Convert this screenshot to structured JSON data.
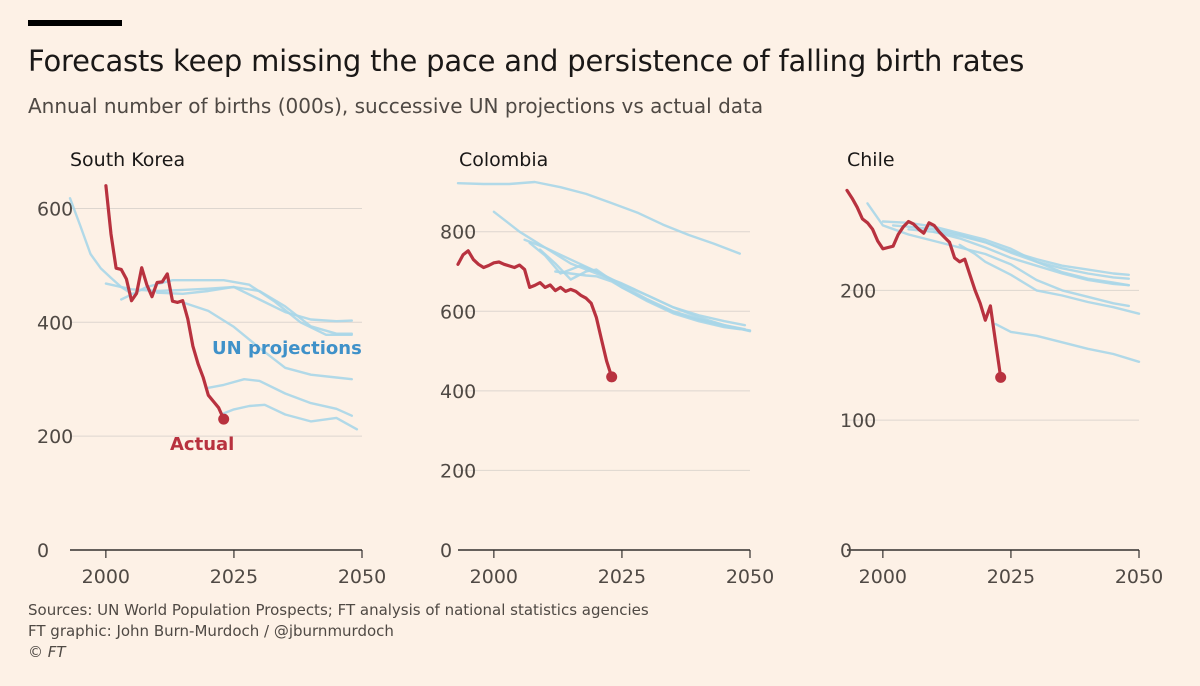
{
  "title": "Forecasts keep missing the pace and persistence of falling birth rates",
  "subtitle": "Annual number of births (000s), successive UN projections vs actual data",
  "footer": {
    "sources": "Sources: UN World Population Prospects; FT analysis of national statistics agencies",
    "credit": "FT graphic: John Burn-Murdoch / @jburnmurdoch",
    "copyright": "© FT"
  },
  "colors": {
    "background": "#fdf1e6",
    "actual": "#b8323f",
    "projection": "#a9d6e8",
    "projection_label": "#3f91c9",
    "grid": "#ddd6cf",
    "axis": "#33302e"
  },
  "chart_data": [
    {
      "type": "line",
      "title": "South Korea",
      "xlim": [
        1993,
        2050
      ],
      "ylim": [
        0,
        650
      ],
      "xticks": [
        2000,
        2025,
        2050
      ],
      "yticks": [
        0,
        200,
        400,
        600
      ],
      "annotations": {
        "projections": "UN projections",
        "actual": "Actual"
      },
      "series": [
        {
          "name": "Actual",
          "x": [
            2000,
            2001,
            2002,
            2003,
            2004,
            2005,
            2006,
            2007,
            2008,
            2009,
            2010,
            2011,
            2012,
            2013,
            2014,
            2015,
            2016,
            2017,
            2018,
            2019,
            2020,
            2021,
            2022,
            2023
          ],
          "y": [
            640,
            555,
            495,
            493,
            476,
            438,
            451,
            496,
            466,
            445,
            470,
            471,
            485,
            437,
            435,
            438,
            406,
            358,
            327,
            303,
            272,
            261,
            250,
            230
          ]
        },
        {
          "x": [
            1993,
            1995,
            1997,
            1999,
            2001,
            2003,
            2005
          ],
          "y": [
            618,
            570,
            520,
            495,
            478,
            462,
            450
          ]
        },
        {
          "x": [
            2000,
            2005,
            2010,
            2015,
            2020,
            2025,
            2030,
            2035,
            2040,
            2045,
            2048
          ],
          "y": [
            468,
            458,
            455,
            457,
            459,
            462,
            440,
            418,
            405,
            402,
            403
          ]
        },
        {
          "x": [
            2003,
            2008,
            2013,
            2018,
            2023,
            2028,
            2033,
            2038,
            2043,
            2048
          ],
          "y": [
            440,
            462,
            474,
            474,
            474,
            466,
            436,
            400,
            378,
            378
          ]
        },
        {
          "x": [
            2010,
            2015,
            2020,
            2025,
            2030,
            2035,
            2040,
            2045,
            2048
          ],
          "y": [
            452,
            450,
            455,
            462,
            455,
            428,
            393,
            380,
            380
          ]
        },
        {
          "x": [
            2015,
            2020,
            2025,
            2030,
            2035,
            2040,
            2045,
            2048
          ],
          "y": [
            435,
            420,
            392,
            355,
            320,
            308,
            303,
            300
          ]
        },
        {
          "x": [
            2020,
            2023,
            2027,
            2030,
            2035,
            2040,
            2045,
            2048
          ],
          "y": [
            285,
            290,
            300,
            297,
            275,
            258,
            248,
            236
          ]
        },
        {
          "x": [
            2023,
            2025,
            2028,
            2031,
            2035,
            2040,
            2045,
            2049
          ],
          "y": [
            240,
            247,
            253,
            255,
            238,
            226,
            232,
            212
          ]
        }
      ]
    },
    {
      "type": "line",
      "title": "Colombia",
      "xlim": [
        1993,
        2050
      ],
      "ylim": [
        0,
        930
      ],
      "xticks": [
        2000,
        2025,
        2050
      ],
      "yticks": [
        0,
        200,
        400,
        600,
        800
      ],
      "series": [
        {
          "name": "Actual",
          "x": [
            1993,
            1994,
            1995,
            1996,
            1997,
            1998,
            1999,
            2000,
            2001,
            2002,
            2003,
            2004,
            2005,
            2006,
            2007,
            2008,
            2009,
            2010,
            2011,
            2012,
            2013,
            2014,
            2015,
            2016,
            2017,
            2018,
            2019,
            2020,
            2021,
            2022,
            2023
          ],
          "y": [
            718,
            742,
            752,
            730,
            718,
            710,
            715,
            722,
            724,
            718,
            714,
            710,
            716,
            705,
            660,
            665,
            672,
            660,
            666,
            652,
            660,
            650,
            655,
            650,
            640,
            633,
            620,
            585,
            530,
            475,
            435
          ]
        },
        {
          "x": [
            1993,
            1998,
            2003,
            2008,
            2013,
            2018,
            2023,
            2028,
            2033,
            2038,
            2043,
            2048
          ],
          "y": [
            922,
            920,
            920,
            925,
            912,
            895,
            872,
            848,
            818,
            792,
            770,
            745
          ]
        },
        {
          "x": [
            2000,
            2005,
            2010,
            2015,
            2020,
            2025,
            2030,
            2035,
            2040,
            2045,
            2049
          ],
          "y": [
            850,
            800,
            760,
            730,
            700,
            668,
            640,
            610,
            590,
            575,
            565
          ]
        },
        {
          "x": [
            2006,
            2010,
            2015,
            2020,
            2025,
            2030,
            2035,
            2040,
            2045,
            2050
          ],
          "y": [
            780,
            760,
            720,
            695,
            670,
            640,
            610,
            585,
            565,
            550
          ]
        },
        {
          "x": [
            2007,
            2010,
            2013,
            2017,
            2020,
            2025,
            2030,
            2035,
            2040,
            2045,
            2049
          ],
          "y": [
            772,
            740,
            695,
            715,
            700,
            665,
            630,
            600,
            580,
            565,
            555
          ]
        },
        {
          "x": [
            2009,
            2012,
            2015,
            2018,
            2020,
            2025,
            2030,
            2035,
            2040,
            2045,
            2048
          ],
          "y": [
            755,
            720,
            680,
            700,
            705,
            660,
            625,
            595,
            575,
            560,
            555
          ]
        },
        {
          "x": [
            2012,
            2015,
            2018,
            2020,
            2023,
            2025,
            2030,
            2035,
            2040,
            2045,
            2050
          ],
          "y": [
            700,
            695,
            690,
            688,
            675,
            660,
            628,
            598,
            578,
            562,
            552
          ]
        }
      ]
    },
    {
      "type": "line",
      "title": "Chile",
      "xlim": [
        1993,
        2050
      ],
      "ylim": [
        0,
        285
      ],
      "xticks": [
        2000,
        2025,
        2050
      ],
      "yticks": [
        0,
        100,
        200
      ],
      "series": [
        {
          "name": "Actual",
          "x": [
            1993,
            1994,
            1995,
            1996,
            1997,
            1998,
            1999,
            2000,
            2001,
            2002,
            2003,
            2004,
            2005,
            2006,
            2007,
            2008,
            2009,
            2010,
            2011,
            2012,
            2013,
            2014,
            2015,
            2016,
            2017,
            2018,
            2019,
            2020,
            2021,
            2022,
            2023
          ],
          "y": [
            277,
            271,
            264,
            255,
            252,
            247,
            238,
            232,
            233,
            234,
            243,
            249,
            253,
            251,
            247,
            244,
            252,
            250,
            245,
            241,
            237,
            225,
            222,
            224,
            212,
            200,
            190,
            177,
            188,
            160,
            133
          ]
        },
        {
          "x": [
            1997,
            2000,
            2005,
            2010,
            2015,
            2020,
            2025,
            2030,
            2035,
            2040,
            2045,
            2048
          ],
          "y": [
            267,
            250,
            243,
            238,
            233,
            228,
            220,
            208,
            200,
            195,
            190,
            188
          ]
        },
        {
          "x": [
            2000,
            2005,
            2010,
            2015,
            2020,
            2025,
            2030,
            2035,
            2040,
            2045,
            2048
          ],
          "y": [
            253,
            252,
            249,
            244,
            239,
            232,
            222,
            214,
            209,
            206,
            204
          ]
        },
        {
          "x": [
            2002,
            2005,
            2010,
            2015,
            2020,
            2025,
            2030,
            2035,
            2040,
            2045,
            2048
          ],
          "y": [
            250,
            249,
            247,
            243,
            237,
            229,
            222,
            217,
            213,
            210,
            209
          ]
        },
        {
          "x": [
            2005,
            2010,
            2015,
            2020,
            2025,
            2030,
            2035,
            2040,
            2045,
            2048
          ],
          "y": [
            247,
            245,
            242,
            237,
            230,
            224,
            219,
            216,
            213,
            212
          ]
        },
        {
          "x": [
            2010,
            2015,
            2020,
            2025,
            2030,
            2035,
            2040,
            2045,
            2048
          ],
          "y": [
            245,
            240,
            233,
            225,
            219,
            213,
            208,
            205,
            204
          ]
        },
        {
          "x": [
            2015,
            2018,
            2020,
            2025,
            2030,
            2035,
            2040,
            2045,
            2050
          ],
          "y": [
            235,
            228,
            222,
            212,
            200,
            196,
            191,
            187,
            182
          ]
        },
        {
          "x": [
            2022,
            2023,
            2025,
            2030,
            2035,
            2040,
            2045,
            2050
          ],
          "y": [
            174,
            172,
            168,
            165,
            160,
            155,
            151,
            145
          ]
        }
      ]
    }
  ]
}
